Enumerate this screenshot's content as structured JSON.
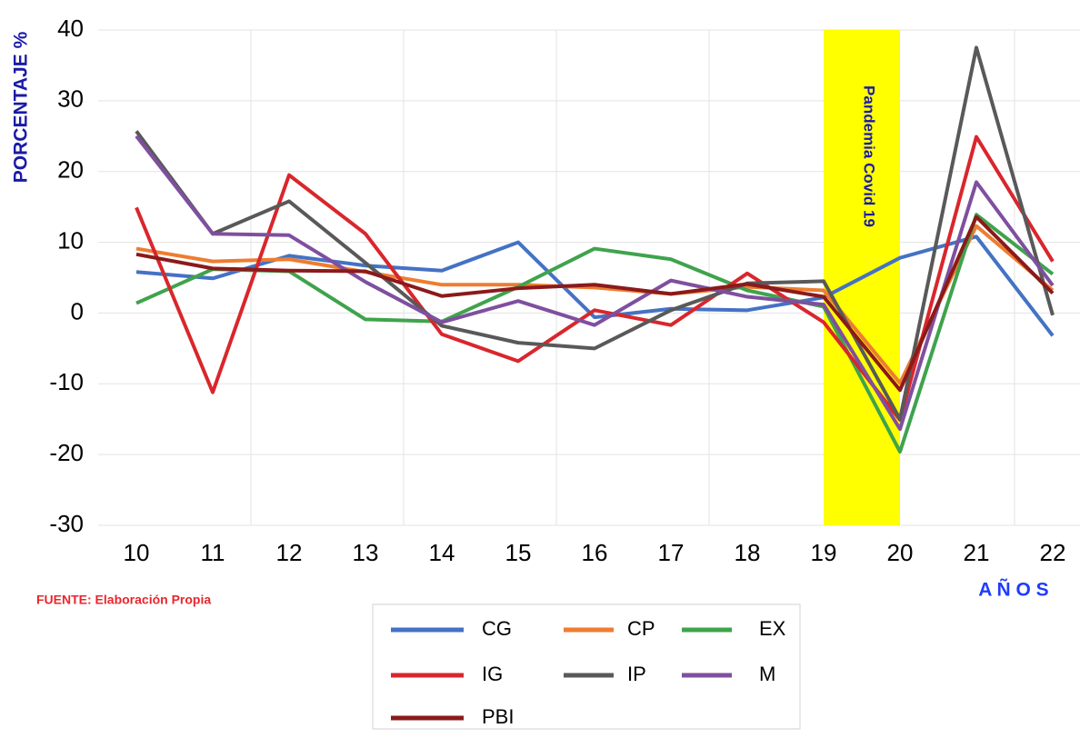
{
  "chart_data": {
    "type": "line",
    "y_label": "PORCENTAJE %",
    "x_label": "A Ñ O S",
    "source": "FUENTE: Elaboración Propia",
    "annotation": "Pandemia Covid 19",
    "categories": [
      "10",
      "11",
      "12",
      "13",
      "14",
      "15",
      "16",
      "17",
      "18",
      "19",
      "20",
      "21",
      "22"
    ],
    "ylim": [
      -30,
      40
    ],
    "yticks": [
      -30,
      -20,
      -10,
      0,
      10,
      20,
      30,
      40
    ],
    "grid": true,
    "series": [
      {
        "name": "CG",
        "color": "#4472c4",
        "values": [
          5.8,
          4.9,
          8.1,
          6.7,
          6.0,
          10.0,
          -0.6,
          0.6,
          0.4,
          2.2,
          7.8,
          10.8,
          -3.2
        ]
      },
      {
        "name": "CP",
        "color": "#ed7d31",
        "values": [
          9.1,
          7.3,
          7.6,
          5.8,
          4.0,
          4.0,
          3.6,
          2.7,
          3.7,
          3.2,
          -9.9,
          12.3,
          3.2
        ]
      },
      {
        "name": "EX",
        "color": "#3fa34d",
        "values": [
          1.4,
          6.2,
          5.9,
          -0.9,
          -1.2,
          3.7,
          9.1,
          7.6,
          3.2,
          0.9,
          -19.6,
          13.9,
          5.5
        ]
      },
      {
        "name": "IG",
        "color": "#d9262c",
        "values": [
          14.9,
          -11.2,
          19.5,
          11.2,
          -3.0,
          -6.8,
          0.4,
          -1.7,
          5.6,
          -1.3,
          -15.1,
          24.9,
          7.3
        ]
      },
      {
        "name": "IP",
        "color": "#595959",
        "values": [
          25.7,
          11.2,
          15.8,
          7.1,
          -1.8,
          -4.2,
          -5.0,
          0.4,
          4.2,
          4.5,
          -15.0,
          37.5,
          -0.3
        ]
      },
      {
        "name": "M",
        "color": "#7f4f9f",
        "values": [
          25.0,
          11.2,
          11.0,
          4.4,
          -1.3,
          1.7,
          -1.7,
          4.6,
          2.3,
          1.2,
          -16.4,
          18.5,
          3.9
        ]
      },
      {
        "name": "PBI",
        "color": "#8b1a1a",
        "values": [
          8.3,
          6.3,
          6.0,
          5.9,
          2.4,
          3.5,
          4.0,
          2.7,
          4.1,
          2.3,
          -10.9,
          13.6,
          2.8
        ]
      }
    ]
  }
}
